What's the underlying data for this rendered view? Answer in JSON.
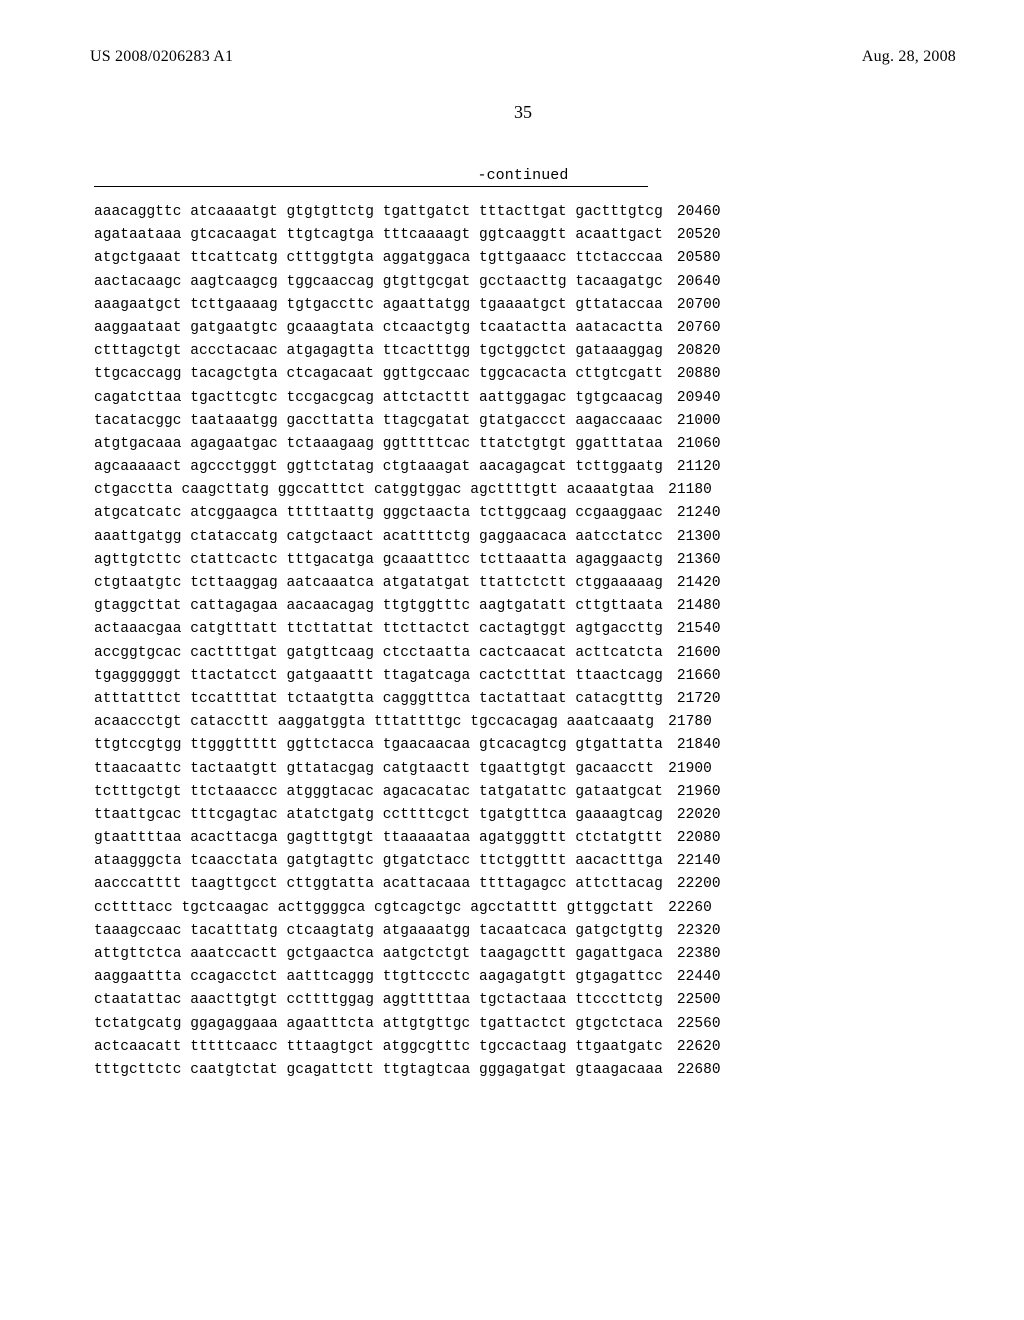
{
  "header": {
    "pubnum": "US 2008/0206283 A1",
    "pubdate": "Aug. 28, 2008",
    "pagenum": "35",
    "continued": "-continued"
  },
  "sequence": {
    "rows": [
      {
        "b": [
          "aaacaggttc",
          "atcaaaatgt",
          "gtgtgttctg",
          "tgattgatct",
          "tttacttgat",
          "gactttgtcg"
        ],
        "pos": "20460"
      },
      {
        "b": [
          "agataataaa",
          "gtcacaagat",
          "ttgtcagtga",
          "tttcaaaagt",
          "ggtcaaggtt",
          "acaattgact"
        ],
        "pos": "20520"
      },
      {
        "b": [
          "atgctgaaat",
          "ttcattcatg",
          "ctttggtgta",
          "aggatggaca",
          "tgttgaaacc",
          "ttctacccaa"
        ],
        "pos": "20580"
      },
      {
        "b": [
          "aactacaagc",
          "aagtcaagcg",
          "tggcaaccag",
          "gtgttgcgat",
          "gcctaacttg",
          "tacaagatgc"
        ],
        "pos": "20640"
      },
      {
        "b": [
          "aaagaatgct",
          "tcttgaaaag",
          "tgtgaccttc",
          "agaattatgg",
          "tgaaaatgct",
          "gttataccaa"
        ],
        "pos": "20700"
      },
      {
        "b": [
          "aaggaataat",
          "gatgaatgtc",
          "gcaaagtata",
          "ctcaactgtg",
          "tcaatactta",
          "aatacactta"
        ],
        "pos": "20760"
      },
      {
        "b": [
          "ctttagctgt",
          "accctacaac",
          "atgagagtta",
          "ttcactttgg",
          "tgctggctct",
          "gataaaggag"
        ],
        "pos": "20820"
      },
      {
        "b": [
          "ttgcaccagg",
          "tacagctgta",
          "ctcagacaat",
          "ggttgccaac",
          "tggcacacta",
          "cttgtcgatt"
        ],
        "pos": "20880"
      },
      {
        "b": [
          "cagatcttaa",
          "tgacttcgtc",
          "tccgacgcag",
          "attctacttt",
          "aattggagac",
          "tgtgcaacag"
        ],
        "pos": "20940"
      },
      {
        "b": [
          "tacatacggc",
          "taataaatgg",
          "gaccttatta",
          "ttagcgatat",
          "gtatgaccct",
          "aagaccaaac"
        ],
        "pos": "21000"
      },
      {
        "b": [
          "atgtgacaaa",
          "agagaatgac",
          "tctaaagaag",
          "ggtttttcac",
          "ttatctgtgt",
          "ggatttataa"
        ],
        "pos": "21060"
      },
      {
        "b": [
          "agcaaaaact",
          "agccctgggt",
          "ggttctatag",
          "ctgtaaagat",
          "aacagagcat",
          "tcttggaatg"
        ],
        "pos": "21120"
      },
      {
        "b": [
          "ctgacctta",
          "caagcttatg",
          "ggccatttct",
          "catggtggac",
          "agcttttgtt",
          "acaaatgtaa"
        ],
        "pos": "21180"
      },
      {
        "b": [
          "atgcatcatc",
          "atcggaagca",
          "tttttaattg",
          "gggctaacta",
          "tcttggcaag",
          "ccgaaggaac"
        ],
        "pos": "21240"
      },
      {
        "b": [
          "aaattgatgg",
          "ctataccatg",
          "catgctaact",
          "acattttctg",
          "gaggaacaca",
          "aatcctatcc"
        ],
        "pos": "21300"
      },
      {
        "b": [
          "agttgtcttc",
          "ctattcactc",
          "tttgacatga",
          "gcaaatttcc",
          "tcttaaatta",
          "agaggaactg"
        ],
        "pos": "21360"
      },
      {
        "b": [
          "ctgtaatgtc",
          "tcttaaggag",
          "aatcaaatca",
          "atgatatgat",
          "ttattctctt",
          "ctggaaaaag"
        ],
        "pos": "21420"
      },
      {
        "b": [
          "gtaggcttat",
          "cattagagaa",
          "aacaacagag",
          "ttgtggtttc",
          "aagtgatatt",
          "cttgttaata"
        ],
        "pos": "21480"
      },
      {
        "b": [
          "actaaacgaa",
          "catgtttatt",
          "ttcttattat",
          "ttcttactct",
          "cactagtggt",
          "agtgaccttg"
        ],
        "pos": "21540"
      },
      {
        "b": [
          "accggtgcac",
          "cacttttgat",
          "gatgttcaag",
          "ctcctaatta",
          "cactcaacat",
          "acttcatcta"
        ],
        "pos": "21600"
      },
      {
        "b": [
          "tgaggggggt",
          "ttactatcct",
          "gatgaaattt",
          "ttagatcaga",
          "cactctttat",
          "ttaactcagg"
        ],
        "pos": "21660"
      },
      {
        "b": [
          "atttatttct",
          "tccattttat",
          "tctaatgtta",
          "cagggtttca",
          "tactattaat",
          "catacgtttg"
        ],
        "pos": "21720"
      },
      {
        "b": [
          "acaaccctgt",
          "cataccttt",
          "aaggatggta",
          "tttattttgc",
          "tgccacagag",
          "aaatcaaatg"
        ],
        "pos": "21780"
      },
      {
        "b": [
          "ttgtccgtgg",
          "ttgggttttt",
          "ggttctacca",
          "tgaacaacaa",
          "gtcacagtcg",
          "gtgattatta"
        ],
        "pos": "21840"
      },
      {
        "b": [
          "ttaacaattc",
          "tactaatgtt",
          "gttatacgag",
          "catgtaactt",
          "tgaattgtgt",
          "gacaacctt"
        ],
        "pos": "21900"
      },
      {
        "b": [
          "tctttgctgt",
          "ttctaaaccc",
          "atgggtacac",
          "agacacatac",
          "tatgatattc",
          "gataatgcat"
        ],
        "pos": "21960"
      },
      {
        "b": [
          "ttaattgcac",
          "tttcgagtac",
          "atatctgatg",
          "ccttttcgct",
          "tgatgtttca",
          "gaaaagtcag"
        ],
        "pos": "22020"
      },
      {
        "b": [
          "gtaattttaa",
          "acacttacga",
          "gagtttgtgt",
          "ttaaaaataa",
          "agatgggttt",
          "ctctatgttt"
        ],
        "pos": "22080"
      },
      {
        "b": [
          "ataagggcta",
          "tcaacctata",
          "gatgtagttc",
          "gtgatctacc",
          "ttctggtttt",
          "aacactttga"
        ],
        "pos": "22140"
      },
      {
        "b": [
          "aacccatttt",
          "taagttgcct",
          "cttggtatta",
          "acattacaaa",
          "ttttagagcc",
          "attcttacag"
        ],
        "pos": "22200"
      },
      {
        "b": [
          "ccttttacc",
          "tgctcaagac",
          "acttggggca",
          "cgtcagctgc",
          "agcctatttt",
          "gttggctatt"
        ],
        "pos": "22260"
      },
      {
        "b": [
          "taaagccaac",
          "tacatttatg",
          "ctcaagtatg",
          "atgaaaatgg",
          "tacaatcaca",
          "gatgctgttg"
        ],
        "pos": "22320"
      },
      {
        "b": [
          "attgttctca",
          "aaatccactt",
          "gctgaactca",
          "aatgctctgt",
          "taagagcttt",
          "gagattgaca"
        ],
        "pos": "22380"
      },
      {
        "b": [
          "aaggaattta",
          "ccagacctct",
          "aatttcaggg",
          "ttgttccctc",
          "aagagatgtt",
          "gtgagattcc"
        ],
        "pos": "22440"
      },
      {
        "b": [
          "ctaatattac",
          "aaacttgtgt",
          "ccttttggag",
          "aggtttttaa",
          "tgctactaaa",
          "ttcccttctg"
        ],
        "pos": "22500"
      },
      {
        "b": [
          "tctatgcatg",
          "ggagaggaaa",
          "agaatttcta",
          "attgtgttgc",
          "tgattactct",
          "gtgctctaca"
        ],
        "pos": "22560"
      },
      {
        "b": [
          "actcaacatt",
          "tttttcaacc",
          "tttaagtgct",
          "atggcgtttc",
          "tgccactaag",
          "ttgaatgatc"
        ],
        "pos": "22620"
      },
      {
        "b": [
          "tttgcttctc",
          "caatgtctat",
          "gcagattctt",
          "ttgtagtcaa",
          "gggagatgat",
          "gtaagacaaa"
        ],
        "pos": "22680"
      }
    ]
  }
}
